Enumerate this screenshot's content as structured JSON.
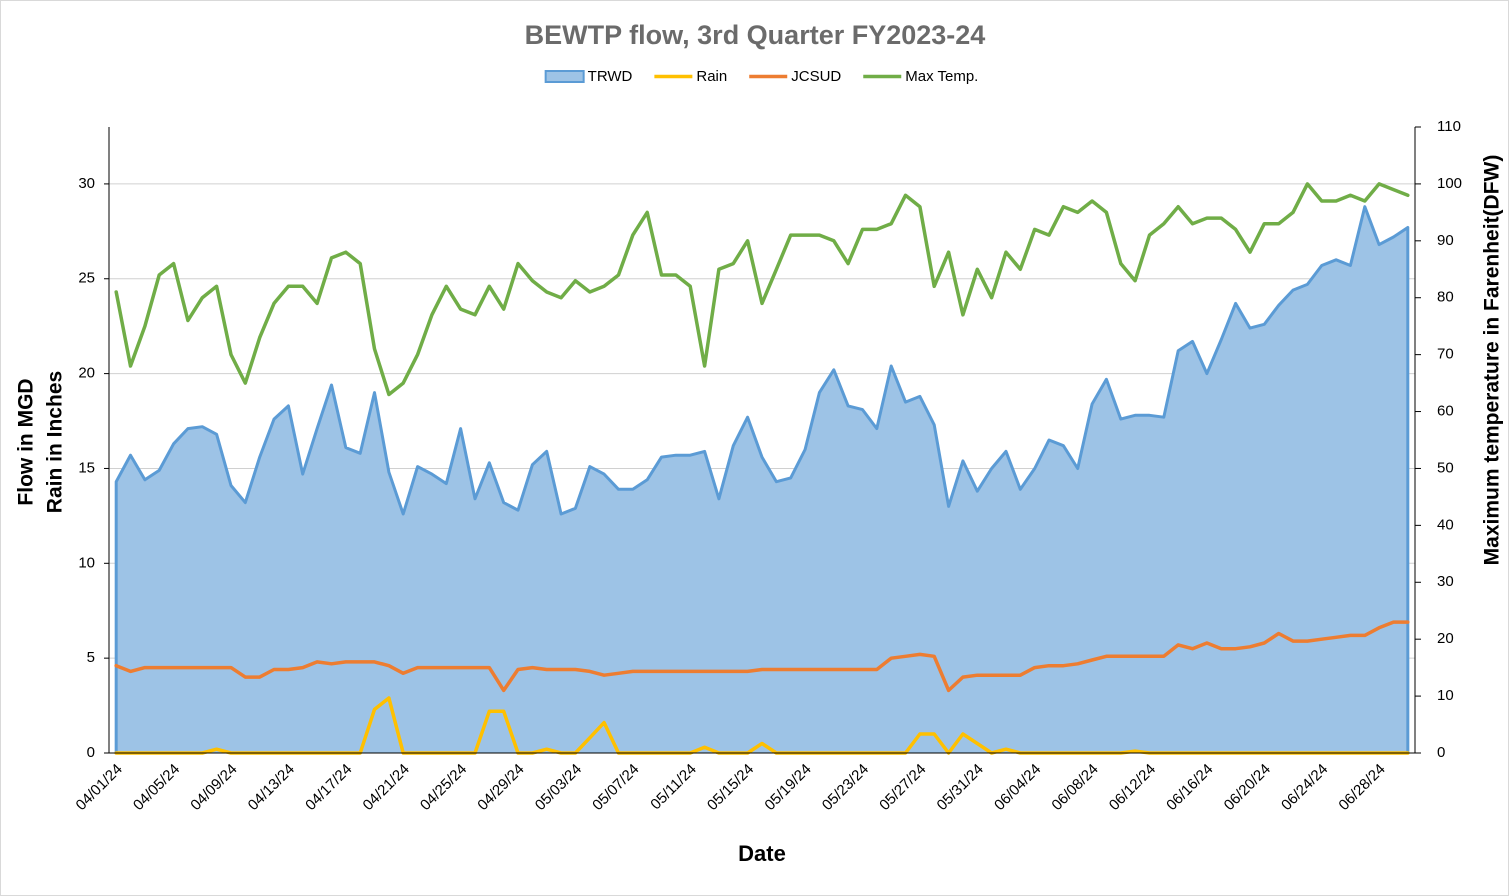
{
  "chart_data": {
    "type": "line",
    "title": "BEWTP flow, 3rd Quarter FY2023-24",
    "xlabel": "Date",
    "ylabel": [
      "Flow in MGD",
      "Rain in Inches"
    ],
    "y2label": "Maximum temperature in Farenheit(DFW)",
    "categories": [
      "04/01/24",
      null,
      null,
      null,
      "04/05/24",
      null,
      null,
      null,
      "04/09/24",
      null,
      null,
      null,
      "04/13/24",
      null,
      null,
      null,
      "04/17/24",
      null,
      null,
      null,
      "04/21/24",
      null,
      null,
      null,
      "04/25/24",
      null,
      null,
      null,
      "04/29/24",
      null,
      null,
      null,
      "05/03/24",
      null,
      null,
      null,
      "05/07/24",
      null,
      null,
      null,
      "05/11/24",
      null,
      null,
      null,
      "05/15/24",
      null,
      null,
      null,
      "05/19/24",
      null,
      null,
      null,
      "05/23/24",
      null,
      null,
      null,
      "05/27/24",
      null,
      null,
      null,
      "05/31/24",
      null,
      null,
      null,
      "06/04/24",
      null,
      null,
      null,
      "06/08/24",
      null,
      null,
      null,
      "06/12/24",
      null,
      null,
      null,
      "06/16/24",
      null,
      null,
      null,
      "06/20/24",
      null,
      null,
      null,
      "06/24/24",
      null,
      null,
      null,
      "06/28/24",
      null,
      null
    ],
    "ylim": [
      0,
      33
    ],
    "yticks": [
      0,
      5,
      10,
      15,
      20,
      25,
      30
    ],
    "y2lim": [
      0,
      110
    ],
    "y2ticks": [
      0,
      10,
      20,
      30,
      40,
      50,
      60,
      70,
      80,
      90,
      100,
      110
    ],
    "grid": true,
    "legend": "top",
    "series": [
      {
        "name": "TRWD",
        "type": "area",
        "color": "#5b9bd5",
        "fill": "#9dc3e6",
        "values": [
          14.3,
          15.7,
          14.4,
          14.9,
          16.3,
          17.1,
          17.2,
          16.8,
          14.1,
          13.2,
          15.6,
          17.6,
          18.3,
          14.7,
          17.1,
          19.4,
          16.1,
          15.8,
          19.0,
          14.8,
          12.6,
          15.1,
          14.7,
          14.2,
          17.1,
          13.4,
          15.3,
          13.2,
          12.8,
          15.2,
          15.9,
          12.6,
          12.9,
          15.1,
          14.7,
          13.9,
          13.9,
          14.4,
          15.6,
          15.7,
          15.7,
          15.9,
          13.4,
          16.2,
          17.7,
          15.6,
          14.3,
          14.5,
          16.0,
          19.0,
          20.2,
          18.3,
          18.1,
          17.1,
          20.4,
          18.5,
          18.8,
          17.3,
          13.0,
          15.4,
          13.8,
          15.0,
          15.9,
          13.9,
          15.0,
          16.5,
          16.2,
          15.0,
          18.4,
          19.7,
          17.6,
          17.8,
          17.8,
          17.7,
          21.2,
          21.7,
          20.0,
          21.8,
          23.7,
          22.4,
          22.6,
          23.6,
          24.4,
          24.7,
          25.7,
          26.0,
          25.7,
          28.8,
          26.8,
          27.2,
          27.7
        ]
      },
      {
        "name": "Rain",
        "color": "#ffc000",
        "values": [
          0,
          0,
          0,
          0,
          0,
          0,
          0,
          0.2,
          0,
          0,
          0,
          0,
          0,
          0,
          0,
          0,
          0,
          0,
          2.3,
          2.9,
          0,
          0,
          0,
          0,
          0,
          0,
          2.2,
          2.2,
          0,
          0,
          0.2,
          0,
          0,
          0.8,
          1.6,
          0,
          0,
          0,
          0,
          0,
          0,
          0.3,
          0,
          0,
          0,
          0.5,
          0,
          0,
          0,
          0,
          0,
          0,
          0,
          0,
          0,
          0,
          1.0,
          1.0,
          0,
          1.0,
          0.5,
          0,
          0.2,
          0,
          0,
          0,
          0,
          0,
          0,
          0,
          0,
          0.1,
          0,
          0,
          0,
          0,
          0,
          0,
          0,
          0,
          0,
          0,
          0,
          0,
          0,
          0,
          0,
          0,
          0,
          0,
          0
        ]
      },
      {
        "name": "JCSUD",
        "color": "#ed7d31",
        "values": [
          4.6,
          4.3,
          4.5,
          4.5,
          4.5,
          4.5,
          4.5,
          4.5,
          4.5,
          4.0,
          4.0,
          4.4,
          4.4,
          4.5,
          4.8,
          4.7,
          4.8,
          4.8,
          4.8,
          4.6,
          4.2,
          4.5,
          4.5,
          4.5,
          4.5,
          4.5,
          4.5,
          3.3,
          4.4,
          4.5,
          4.4,
          4.4,
          4.4,
          4.3,
          4.1,
          4.2,
          4.3,
          4.3,
          4.3,
          4.3,
          4.3,
          4.3,
          4.3,
          4.3,
          4.3,
          4.4,
          4.4,
          4.4,
          4.4,
          4.4,
          4.4,
          4.4,
          4.4,
          4.4,
          5.0,
          5.1,
          5.2,
          5.1,
          3.3,
          4.0,
          4.1,
          4.1,
          4.1,
          4.1,
          4.5,
          4.6,
          4.6,
          4.7,
          4.9,
          5.1,
          5.1,
          5.1,
          5.1,
          5.1,
          5.7,
          5.5,
          5.8,
          5.5,
          5.5,
          5.6,
          5.8,
          6.3,
          5.9,
          5.9,
          6.0,
          6.1,
          6.2,
          6.2,
          6.6,
          6.9,
          6.9
        ]
      },
      {
        "name": "Max Temp.",
        "color": "#70ad47",
        "axis": "y2",
        "values": [
          81,
          68,
          75,
          84,
          86,
          76,
          80,
          82,
          70,
          65,
          73,
          79,
          82,
          82,
          79,
          87,
          88,
          86,
          71,
          63,
          65,
          70,
          77,
          82,
          78,
          77,
          82,
          78,
          86,
          83,
          81,
          80,
          83,
          81,
          82,
          84,
          91,
          95,
          84,
          84,
          82,
          68,
          85,
          86,
          90,
          79,
          85,
          91,
          91,
          91,
          90,
          86,
          92,
          92,
          93,
          98,
          96,
          82,
          88,
          77,
          85,
          80,
          88,
          85,
          92,
          91,
          96,
          95,
          97,
          95,
          86,
          83,
          91,
          93,
          96,
          93,
          94,
          94,
          92,
          88,
          93,
          93,
          95,
          100,
          97,
          97,
          98,
          97,
          100,
          99,
          98
        ]
      }
    ]
  }
}
